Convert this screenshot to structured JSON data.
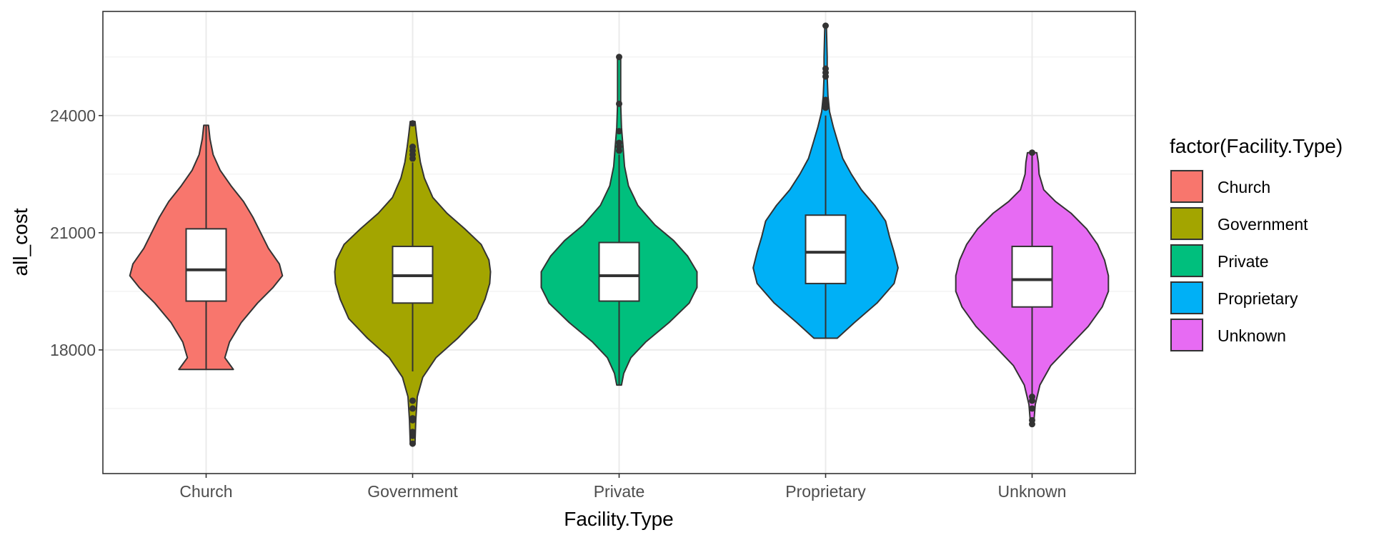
{
  "chart_data": {
    "type": "violin",
    "title": "",
    "xlabel": "Facility.Type",
    "ylabel": "all_cost",
    "ylim": [
      15200,
      26300
    ],
    "yticks": [
      18000,
      21000,
      24000
    ],
    "ytick_labels": [
      "18000",
      "21000",
      "24000"
    ],
    "grid": true,
    "legend": {
      "title": "factor(Facility.Type)",
      "position": "right",
      "entries": [
        "Church",
        "Government",
        "Private",
        "Proprietary",
        "Unknown"
      ]
    },
    "categories": [
      "Church",
      "Government",
      "Private",
      "Proprietary",
      "Unknown"
    ],
    "colors": [
      "#F8766D",
      "#A3A500",
      "#00BF7D",
      "#00B0F6",
      "#E76BF3"
    ],
    "box": [
      {
        "min": 17500,
        "q1": 19250,
        "median": 20050,
        "q3": 21100,
        "max": 23750
      },
      {
        "min": 17450,
        "q1": 19200,
        "median": 19900,
        "q3": 20650,
        "max": 22800
      },
      {
        "min": 17100,
        "q1": 19250,
        "median": 19900,
        "q3": 20750,
        "max": 23000
      },
      {
        "min": 18300,
        "q1": 19700,
        "median": 20500,
        "q3": 21450,
        "max": 24000
      },
      {
        "min": 16800,
        "q1": 19100,
        "median": 19800,
        "q3": 20650,
        "max": 23050
      }
    ],
    "outliers": [
      [],
      [
        15600,
        15800,
        15900,
        16200,
        16250,
        16500,
        16700,
        22900,
        23000,
        23100,
        23200,
        23800
      ],
      [
        23100,
        23200,
        23300,
        23600,
        24300,
        25500
      ],
      [
        24200,
        24300,
        24400,
        25000,
        25100,
        25200,
        26300
      ],
      [
        16100,
        16200,
        16500,
        16700,
        16800,
        23050
      ]
    ],
    "density_profiles": [
      [
        [
          17500,
          0.35
        ],
        [
          17800,
          0.24
        ],
        [
          18200,
          0.3
        ],
        [
          18700,
          0.45
        ],
        [
          19200,
          0.66
        ],
        [
          19600,
          0.86
        ],
        [
          19900,
          0.98
        ],
        [
          20200,
          0.94
        ],
        [
          20600,
          0.8
        ],
        [
          21000,
          0.7
        ],
        [
          21400,
          0.6
        ],
        [
          21800,
          0.48
        ],
        [
          22200,
          0.32
        ],
        [
          22600,
          0.18
        ],
        [
          23000,
          0.09
        ],
        [
          23400,
          0.05
        ],
        [
          23750,
          0.03
        ]
      ],
      [
        [
          15600,
          0.03
        ],
        [
          16200,
          0.04
        ],
        [
          16800,
          0.06
        ],
        [
          17300,
          0.13
        ],
        [
          17800,
          0.3
        ],
        [
          18300,
          0.58
        ],
        [
          18800,
          0.82
        ],
        [
          19300,
          0.93
        ],
        [
          19700,
          0.99
        ],
        [
          20000,
          1.0
        ],
        [
          20300,
          0.98
        ],
        [
          20700,
          0.88
        ],
        [
          21100,
          0.67
        ],
        [
          21500,
          0.44
        ],
        [
          21900,
          0.26
        ],
        [
          22400,
          0.15
        ],
        [
          22800,
          0.1
        ],
        [
          23200,
          0.07
        ],
        [
          23500,
          0.05
        ],
        [
          23850,
          0.03
        ]
      ],
      [
        [
          17100,
          0.03
        ],
        [
          17400,
          0.06
        ],
        [
          17800,
          0.15
        ],
        [
          18200,
          0.34
        ],
        [
          18700,
          0.64
        ],
        [
          19200,
          0.9
        ],
        [
          19600,
          1.0
        ],
        [
          20000,
          1.0
        ],
        [
          20400,
          0.88
        ],
        [
          20800,
          0.7
        ],
        [
          21200,
          0.46
        ],
        [
          21700,
          0.24
        ],
        [
          22200,
          0.12
        ],
        [
          22700,
          0.07
        ],
        [
          23200,
          0.05
        ],
        [
          23700,
          0.03
        ],
        [
          24300,
          0.02
        ],
        [
          25500,
          0.02
        ]
      ],
      [
        [
          18300,
          0.15
        ],
        [
          18700,
          0.37
        ],
        [
          19200,
          0.66
        ],
        [
          19700,
          0.88
        ],
        [
          20100,
          0.93
        ],
        [
          20500,
          0.88
        ],
        [
          20900,
          0.82
        ],
        [
          21300,
          0.77
        ],
        [
          21700,
          0.63
        ],
        [
          22100,
          0.46
        ],
        [
          22500,
          0.33
        ],
        [
          22900,
          0.22
        ],
        [
          23300,
          0.16
        ],
        [
          23700,
          0.1
        ],
        [
          24100,
          0.05
        ],
        [
          24500,
          0.03
        ],
        [
          25000,
          0.02
        ],
        [
          25500,
          0.02
        ],
        [
          26300,
          0.01
        ]
      ],
      [
        [
          16100,
          0.02
        ],
        [
          16600,
          0.04
        ],
        [
          17100,
          0.1
        ],
        [
          17600,
          0.24
        ],
        [
          18100,
          0.48
        ],
        [
          18600,
          0.72
        ],
        [
          19100,
          0.9
        ],
        [
          19500,
          0.98
        ],
        [
          19900,
          0.98
        ],
        [
          20300,
          0.93
        ],
        [
          20700,
          0.84
        ],
        [
          21100,
          0.7
        ],
        [
          21500,
          0.5
        ],
        [
          21800,
          0.3
        ],
        [
          22100,
          0.15
        ],
        [
          22500,
          0.09
        ],
        [
          22800,
          0.08
        ],
        [
          23050,
          0.06
        ]
      ]
    ]
  }
}
